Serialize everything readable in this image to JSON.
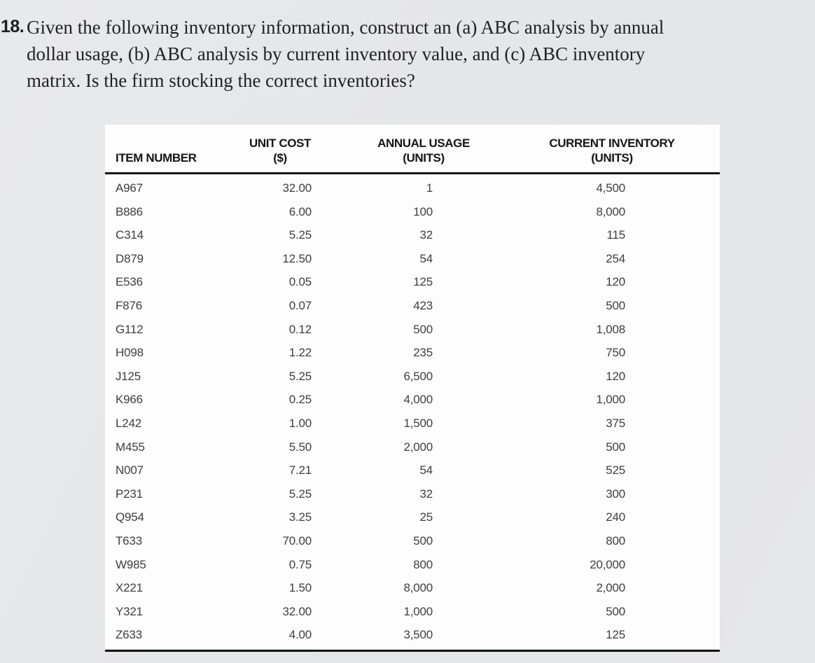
{
  "problem": {
    "number": "18.",
    "lines": [
      "Given the following inventory information, construct an (a) ABC analysis by annual",
      "dollar usage, (b) ABC analysis by current inventory value, and (c) ABC inventory",
      "matrix. Is the firm stocking the correct inventories?"
    ]
  },
  "table": {
    "columns": [
      {
        "label": "ITEM NUMBER",
        "sub": ""
      },
      {
        "label": "UNIT COST",
        "sub": "($)"
      },
      {
        "label": "ANNUAL USAGE",
        "sub": "(UNITS)"
      },
      {
        "label": "CURRENT INVENTORY",
        "sub": "(UNITS)"
      }
    ],
    "rows": [
      [
        "A967",
        "32.00",
        "1",
        "4,500"
      ],
      [
        "B886",
        "6.00",
        "100",
        "8,000"
      ],
      [
        "C314",
        "5.25",
        "32",
        "115"
      ],
      [
        "D879",
        "12.50",
        "54",
        "254"
      ],
      [
        "E536",
        "0.05",
        "125",
        "120"
      ],
      [
        "F876",
        "0.07",
        "423",
        "500"
      ],
      [
        "G112",
        "0.12",
        "500",
        "1,008"
      ],
      [
        "H098",
        "1.22",
        "235",
        "750"
      ],
      [
        "J125",
        "5.25",
        "6,500",
        "120"
      ],
      [
        "K966",
        "0.25",
        "4,000",
        "1,000"
      ],
      [
        "L242",
        "1.00",
        "1,500",
        "375"
      ],
      [
        "M455",
        "5.50",
        "2,000",
        "500"
      ],
      [
        "N007",
        "7.21",
        "54",
        "525"
      ],
      [
        "P231",
        "5.25",
        "32",
        "300"
      ],
      [
        "Q954",
        "3.25",
        "25",
        "240"
      ],
      [
        "T633",
        "70.00",
        "500",
        "800"
      ],
      [
        "W985",
        "0.75",
        "800",
        "20,000"
      ],
      [
        "X221",
        "1.50",
        "8,000",
        "2,000"
      ],
      [
        "Y321",
        "32.00",
        "1,000",
        "500"
      ],
      [
        "Z633",
        "4.00",
        "3,500",
        "125"
      ]
    ]
  },
  "colors": {
    "page_background": "#e5e6e8",
    "table_background": "#fdfdfe",
    "rule": "#161616",
    "body_text": "#212124",
    "data_text": "#3e3e40"
  }
}
